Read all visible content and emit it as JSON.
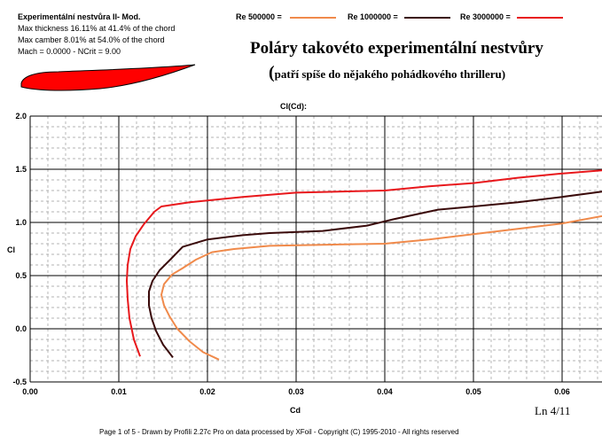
{
  "airfoil_info": {
    "name": "Experimentální nestvůra  II- Mod.",
    "lines": [
      "Max thickness 16.11% at 41.4% of the chord",
      "Max camber 8.01% at 54.0% of the chord",
      "Mach = 0.0000 - NCrit = 9.00"
    ],
    "shape_color": "#ff0000"
  },
  "legend": [
    {
      "label": "Re 500000 =",
      "color": "#f08a4b"
    },
    {
      "label": "Re 1000000 =",
      "color": "#3a0a0a"
    },
    {
      "label": "Re 3000000 =",
      "color": "#e8181c"
    }
  ],
  "title": "Poláry takovéto experimentální nestvůry",
  "subtitle_open": "(",
  "subtitle": "patří spíše do nějakého pohádkového thrilleru)",
  "page_tag": "Ln 4/11",
  "footer": "Page 1 of 5  -  Drawn by Profili 2.27c Pro on data processed by  XFoil - Copyright (C) 1995-2010 - All rights reserved",
  "chart_data": {
    "type": "line",
    "title": "Cl(Cd):",
    "xlabel": "Cd",
    "ylabel": "Cl",
    "xlim": [
      0.0,
      0.0645
    ],
    "ylim": [
      -0.5,
      2.0
    ],
    "xticks": [
      "0.00",
      "0.01",
      "0.02",
      "0.03",
      "0.04",
      "0.05",
      "0.06"
    ],
    "yticks": [
      "2.0",
      "1.5",
      "1.0",
      "0.5",
      "0.0",
      "-0.5"
    ],
    "grid": true,
    "series": [
      {
        "name": "Re 500000",
        "color": "#f08a4b",
        "x": [
          0.0213,
          0.0195,
          0.018,
          0.0166,
          0.0157,
          0.0151,
          0.0148,
          0.0151,
          0.016,
          0.0172,
          0.0187,
          0.0205,
          0.023,
          0.027,
          0.033,
          0.04,
          0.045,
          0.05,
          0.055,
          0.06,
          0.0645
        ],
        "y": [
          -0.29,
          -0.22,
          -0.12,
          0.0,
          0.12,
          0.22,
          0.32,
          0.42,
          0.51,
          0.57,
          0.65,
          0.72,
          0.75,
          0.78,
          0.79,
          0.8,
          0.84,
          0.89,
          0.94,
          0.99,
          1.06
        ]
      },
      {
        "name": "Re 1000000",
        "color": "#3a0a0a",
        "x": [
          0.0161,
          0.015,
          0.0142,
          0.0137,
          0.0134,
          0.0134,
          0.0138,
          0.0146,
          0.0158,
          0.0172,
          0.02,
          0.024,
          0.027,
          0.033,
          0.038,
          0.041,
          0.046,
          0.05,
          0.055,
          0.06,
          0.0645
        ],
        "y": [
          -0.27,
          -0.15,
          -0.02,
          0.1,
          0.22,
          0.35,
          0.45,
          0.55,
          0.65,
          0.77,
          0.84,
          0.88,
          0.9,
          0.92,
          0.97,
          1.03,
          1.12,
          1.15,
          1.19,
          1.24,
          1.29
        ]
      },
      {
        "name": "Re 3000000",
        "color": "#e8181c",
        "x": [
          0.0124,
          0.0117,
          0.0112,
          0.011,
          0.0109,
          0.011,
          0.0113,
          0.0119,
          0.0128,
          0.014,
          0.0148,
          0.018,
          0.024,
          0.03,
          0.04,
          0.045,
          0.05,
          0.055,
          0.06,
          0.0645
        ],
        "y": [
          -0.26,
          -0.1,
          0.1,
          0.28,
          0.45,
          0.6,
          0.75,
          0.87,
          0.98,
          1.1,
          1.15,
          1.19,
          1.24,
          1.28,
          1.3,
          1.34,
          1.37,
          1.42,
          1.46,
          1.49
        ]
      }
    ]
  }
}
